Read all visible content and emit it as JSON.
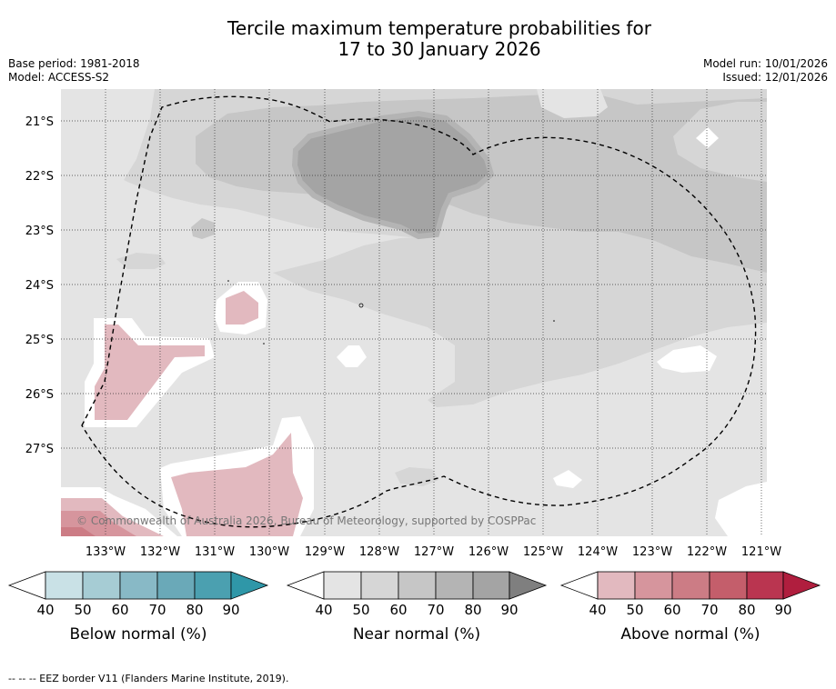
{
  "title": {
    "line1": "Tercile maximum temperature probabilities for",
    "line2": "17 to 30 January 2026"
  },
  "meta": {
    "base_period": "Base period: 1981-2018",
    "model": "Model: ACCESS-S2",
    "model_run": "Model run: 10/01/2026",
    "issued": "Issued: 12/01/2026"
  },
  "map": {
    "copyright": "© Commonwealth of Australia 2026, Bureau of Meteorology, supported by COSPPac",
    "lat_labels": [
      "21°S",
      "22°S",
      "23°S",
      "24°S",
      "25°S",
      "26°S",
      "27°S"
    ],
    "lon_labels": [
      "133°W",
      "132°W",
      "131°W",
      "130°W",
      "129°W",
      "128°W",
      "127°W",
      "126°W",
      "125°W",
      "124°W",
      "123°W",
      "122°W",
      "121°W"
    ]
  },
  "legend": {
    "below": {
      "label": "Below normal (%)",
      "ticks": [
        "40",
        "50",
        "60",
        "70",
        "80",
        "90"
      ],
      "colors": [
        "#c9e1e6",
        "#a6ccd4",
        "#88b9c6",
        "#6aa9b8",
        "#4ba0b0",
        "#2f97a8"
      ]
    },
    "near": {
      "label": "Near normal (%)",
      "ticks": [
        "40",
        "50",
        "60",
        "70",
        "80",
        "90"
      ],
      "colors": [
        "#e4e4e4",
        "#d6d6d6",
        "#c6c6c6",
        "#b4b4b4",
        "#a4a4a4",
        "#7f7f7f"
      ]
    },
    "above": {
      "label": "Above normal (%)",
      "ticks": [
        "40",
        "50",
        "60",
        "70",
        "80",
        "90"
      ],
      "colors": [
        "#e2b9bf",
        "#d6959d",
        "#cc7c85",
        "#c45e6b",
        "#ba3550",
        "#b01e3e"
      ]
    }
  },
  "footnote": "--  --  -- EEZ border V11 (Flanders Marine Institute, 2019)."
}
